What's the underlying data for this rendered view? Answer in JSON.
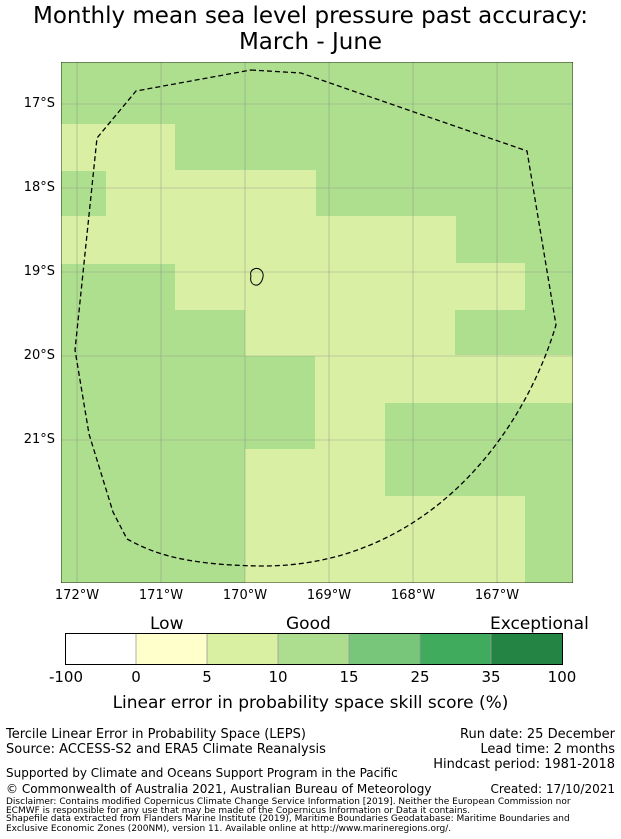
{
  "title": {
    "line1": "Monthly mean sea level pressure past accuracy:",
    "line2": "March - June"
  },
  "map": {
    "lat_labels": [
      "17°S",
      "18°S",
      "19°S",
      "20°S",
      "21°S"
    ],
    "lon_labels": [
      "172°W",
      "171°W",
      "170°W",
      "169°W",
      "168°W",
      "167°W"
    ],
    "colors": {
      "good_light": "#d9efa3",
      "good_mid": "#addf8e",
      "grid": "#888888",
      "boundary": "#000000"
    }
  },
  "colorbar": {
    "categories": [
      "Low",
      "Good",
      "Exceptional"
    ],
    "ticks": [
      "-100",
      "0",
      "5",
      "10",
      "15",
      "25",
      "35",
      "100"
    ],
    "colors": [
      "#ffffff",
      "#ffffcc",
      "#d9f0a3",
      "#addd8e",
      "#78c679",
      "#41ab5d",
      "#238443"
    ],
    "label": "Linear error in probability space skill score (%)"
  },
  "footer": {
    "line1": "Tercile Linear Error in Probability Space (LEPS)",
    "line2": "Source: ACCESS-S2 and ERA5 Climate Reanalysis",
    "run_date": "Run date: 25 December",
    "lead_time": "Lead time: 2 months",
    "hindcast": "Hindcast period: 1981-2018",
    "support": "Supported by Climate and Oceans Support Program in the Pacific",
    "copyright": "© Commonwealth of Australia 2021, Australian Bureau of Meteorology",
    "created": "Created: 17/10/2021",
    "disclaimer1": "Disclaimer: Contains modified Copernicus Climate Change Service Information [2019]. Neither the European Commission nor",
    "disclaimer2": "ECMWF is responsible for any use that may be made of the Copernicus Information or Data it contains.",
    "shapefile1": "Shapefile data extracted from Flanders Marine Institute (2019), Maritime Boundaries Geodatabase: Maritime Boundaries and",
    "shapefile2": "Exclusive Economic Zones (200NM), version 11. Available online at http://www.marineregions.org/."
  }
}
